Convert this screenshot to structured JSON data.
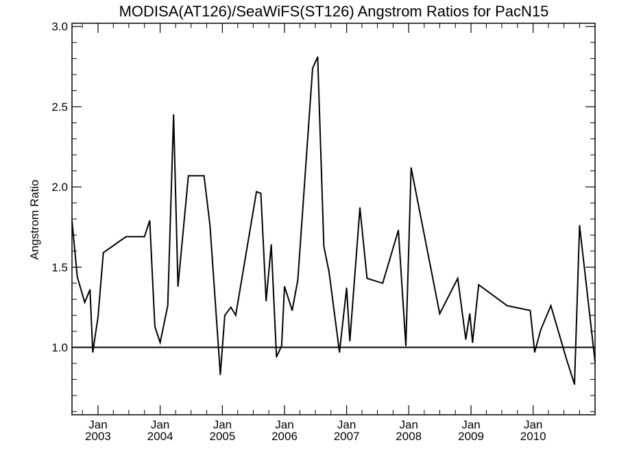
{
  "chart_data": {
    "type": "line",
    "title": "MODISA(AT126)/SeaWiFS(ST126)  Angstrom Ratios for PacN15",
    "xlabel": "",
    "ylabel": "Angstrom Ratio",
    "xlim": [
      "2002-08-01",
      "2010-12-31"
    ],
    "ylim": [
      0.58,
      3.02
    ],
    "y_ticks": [
      "1.0",
      "1.5",
      "2.0",
      "2.5",
      "3.0"
    ],
    "x_ticks": [
      {
        "month": "Jan",
        "year": "2003",
        "date": "2003-01-01"
      },
      {
        "month": "Jan",
        "year": "2004",
        "date": "2004-01-01"
      },
      {
        "month": "Jan",
        "year": "2005",
        "date": "2005-01-01"
      },
      {
        "month": "Jan",
        "year": "2006",
        "date": "2006-01-01"
      },
      {
        "month": "Jan",
        "year": "2007",
        "date": "2007-01-01"
      },
      {
        "month": "Jan",
        "year": "2008",
        "date": "2008-01-01"
      },
      {
        "month": "Jan",
        "year": "2009",
        "date": "2009-01-01"
      },
      {
        "month": "Jan",
        "year": "2010",
        "date": "2010-01-01"
      }
    ],
    "reference_line": {
      "y": 1.0
    },
    "grid": false,
    "series": [
      {
        "color": "#000000",
        "points": [
          [
            "2002-08-01",
            1.79
          ],
          [
            "2002-09-01",
            1.44
          ],
          [
            "2002-10-15",
            1.28
          ],
          [
            "2002-11-15",
            1.36
          ],
          [
            "2002-12-01",
            0.97
          ],
          [
            "2003-01-01",
            1.19
          ],
          [
            "2003-02-01",
            1.59
          ],
          [
            "2003-06-15",
            1.69
          ],
          [
            "2003-10-01",
            1.69
          ],
          [
            "2003-11-01",
            1.79
          ],
          [
            "2003-12-01",
            1.13
          ],
          [
            "2004-01-01",
            1.03
          ],
          [
            "2004-02-15",
            1.26
          ],
          [
            "2004-03-20",
            2.45
          ],
          [
            "2004-04-15",
            1.38
          ],
          [
            "2004-06-15",
            2.07
          ],
          [
            "2004-09-15",
            2.07
          ],
          [
            "2004-10-20",
            1.76
          ],
          [
            "2004-12-20",
            0.83
          ],
          [
            "2005-01-15",
            1.2
          ],
          [
            "2005-02-20",
            1.25
          ],
          [
            "2005-03-20",
            1.2
          ],
          [
            "2005-07-20",
            1.97
          ],
          [
            "2005-08-15",
            1.96
          ],
          [
            "2005-09-15",
            1.29
          ],
          [
            "2005-10-15",
            1.64
          ],
          [
            "2005-11-15",
            0.94
          ],
          [
            "2005-12-15",
            1.01
          ],
          [
            "2006-01-01",
            1.38
          ],
          [
            "2006-02-15",
            1.23
          ],
          [
            "2006-03-20",
            1.42
          ],
          [
            "2006-06-15",
            2.74
          ],
          [
            "2006-07-15",
            2.81
          ],
          [
            "2006-08-20",
            1.63
          ],
          [
            "2006-09-20",
            1.47
          ],
          [
            "2006-11-20",
            0.97
          ],
          [
            "2007-01-01",
            1.37
          ],
          [
            "2007-01-20",
            1.04
          ],
          [
            "2007-03-20",
            1.87
          ],
          [
            "2007-05-01",
            1.43
          ],
          [
            "2007-08-01",
            1.4
          ],
          [
            "2007-11-01",
            1.73
          ],
          [
            "2007-12-15",
            1.01
          ],
          [
            "2008-01-15",
            2.12
          ],
          [
            "2008-07-01",
            1.21
          ],
          [
            "2008-10-15",
            1.43
          ],
          [
            "2008-12-01",
            1.05
          ],
          [
            "2008-12-25",
            1.21
          ],
          [
            "2009-01-10",
            1.03
          ],
          [
            "2009-02-15",
            1.39
          ],
          [
            "2009-08-01",
            1.26
          ],
          [
            "2009-12-15",
            1.23
          ],
          [
            "2010-01-10",
            0.97
          ],
          [
            "2010-02-15",
            1.11
          ],
          [
            "2010-04-15",
            1.26
          ],
          [
            "2010-07-15",
            0.93
          ],
          [
            "2010-09-01",
            0.77
          ],
          [
            "2010-10-01",
            1.76
          ],
          [
            "2010-12-31",
            0.91
          ]
        ]
      }
    ]
  }
}
